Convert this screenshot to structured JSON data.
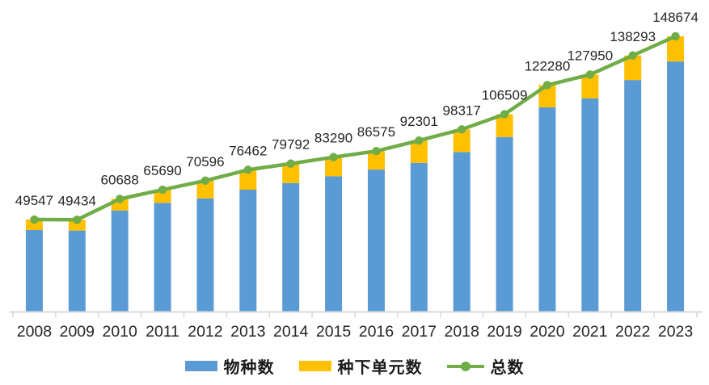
{
  "chart_data": {
    "type": "bar",
    "subtype": "stacked-column-with-line",
    "title": "",
    "xlabel": "",
    "ylabel": "",
    "y_axis_visible": false,
    "grid": false,
    "legend_position": "bottom",
    "ylim": [
      0,
      152000
    ],
    "categories": [
      "2008",
      "2009",
      "2010",
      "2011",
      "2012",
      "2013",
      "2014",
      "2015",
      "2016",
      "2017",
      "2018",
      "2019",
      "2020",
      "2021",
      "2022",
      "2023"
    ],
    "series": [
      {
        "name": "物种数",
        "kind": "bar-stack",
        "color": "#5B9BD5",
        "values": [
          43900,
          43600,
          54500,
          58600,
          61000,
          65700,
          69300,
          73000,
          76600,
          80200,
          86100,
          94200,
          110231,
          115064,
          125034,
          135061
        ]
      },
      {
        "name": "种下单元数",
        "kind": "bar-stack",
        "color": "#FFC000",
        "values": [
          5647,
          5834,
          6188,
          7090,
          9596,
          10762,
          10492,
          10290,
          9975,
          12101,
          12217,
          12309,
          12049,
          12886,
          13259,
          13613
        ]
      },
      {
        "name": "总数",
        "kind": "line",
        "color": "#70AD47",
        "marker": "circle",
        "values": [
          49547,
          49434,
          60688,
          65690,
          70596,
          76462,
          79792,
          83290,
          86575,
          92301,
          98317,
          106509,
          122280,
          127950,
          138293,
          148674
        ]
      }
    ],
    "data_labels": {
      "shown_for_series": "总数",
      "values": [
        "49547",
        "49434",
        "60688",
        "65690",
        "70596",
        "76462",
        "79792",
        "83290",
        "86575",
        "92301",
        "98317",
        "106509",
        "122280",
        "127950",
        "138293",
        "148674"
      ]
    },
    "axis_color": "#D9D9D9",
    "label_color": "#262626"
  }
}
